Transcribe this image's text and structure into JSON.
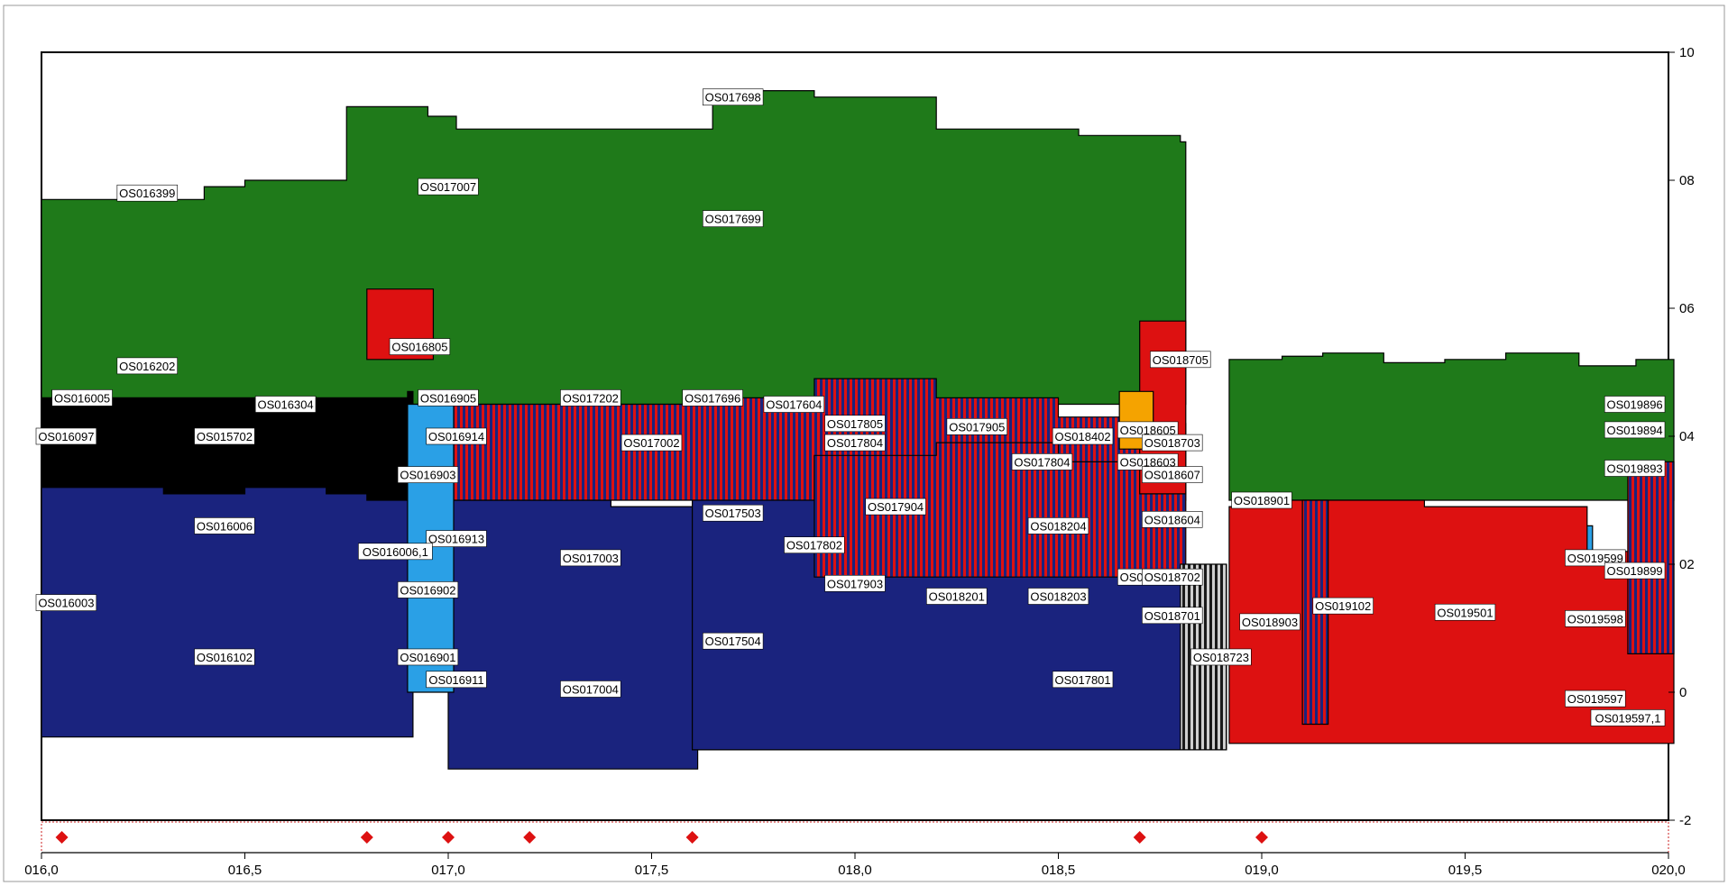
{
  "chart_data": {
    "type": "bar",
    "title": "",
    "xlabel": "",
    "ylabel": "",
    "x_ticks": [
      "016,0",
      "016,5",
      "017,0",
      "017,5",
      "018,0",
      "018,5",
      "019,0",
      "019,5",
      "020,0"
    ],
    "y_ticks": [
      "10",
      "08",
      "06",
      "04",
      "02",
      "0",
      "-2"
    ],
    "xlim": [
      16.0,
      20.0
    ],
    "ylim": [
      -2,
      10
    ],
    "grid": false,
    "legend": "none",
    "colors": {
      "green": "#1f7a1a",
      "navy": "#1a237e",
      "black": "#000000",
      "red": "#dd1111",
      "blue": "#2aa0e6",
      "orange": "#f5a300",
      "marker": "#dd1111"
    },
    "markers": [
      16.05,
      16.8,
      17.0,
      17.2,
      17.6,
      18.7,
      19.0
    ],
    "segments": [
      {
        "pattern": "green",
        "x": [
          16.0,
          16.2,
          16.4,
          16.5,
          16.75,
          16.95,
          17.02,
          17.3,
          17.6,
          17.65,
          17.9,
          18.2,
          18.55,
          18.8
        ],
        "y": [
          7.7,
          7.7,
          7.9,
          8.0,
          9.15,
          9.0,
          8.8,
          8.8,
          8.8,
          9.4,
          9.3,
          8.8,
          8.7,
          8.6
        ],
        "low": 4.5
      },
      {
        "pattern": "green",
        "x": [
          18.92,
          19.05,
          19.15,
          19.3,
          19.45,
          19.6,
          19.78,
          19.92,
          20.0
        ],
        "y": [
          5.2,
          5.25,
          5.3,
          5.15,
          5.2,
          5.3,
          5.1,
          5.2,
          5.2
        ],
        "low": 3.0
      },
      {
        "pattern": "black",
        "x": [
          16.0,
          16.45,
          16.9
        ],
        "y": [
          4.6,
          4.6,
          4.7
        ],
        "low": 3.0
      },
      {
        "pattern": "navy",
        "x": [
          16.0,
          16.1,
          16.3,
          16.5,
          16.7,
          16.8,
          16.9
        ],
        "y": [
          3.2,
          3.2,
          3.1,
          3.2,
          3.1,
          3.0,
          3.0
        ],
        "low": -0.7
      },
      {
        "pattern": "navy",
        "x": [
          17.0,
          17.2,
          17.4,
          17.6
        ],
        "y": [
          3.0,
          3.0,
          2.9,
          2.9
        ],
        "low": -1.2
      },
      {
        "pattern": "navy",
        "x": [
          17.6,
          17.9,
          18.2,
          18.5,
          18.8
        ],
        "y": [
          3.4,
          3.6,
          2.3,
          2.0,
          1.8
        ],
        "low": -0.9
      },
      {
        "pattern": "red-stripes",
        "x": [
          17.0,
          17.3,
          17.6,
          17.9,
          18.2,
          18.5,
          18.8
        ],
        "y": [
          4.5,
          4.5,
          4.6,
          4.9,
          4.6,
          4.3,
          4.2
        ],
        "low": 3.0
      },
      {
        "pattern": "red-stripes",
        "x": [
          17.9,
          18.2,
          18.5,
          18.8
        ],
        "y": [
          3.7,
          3.9,
          3.6,
          3.4
        ],
        "low": 1.8
      },
      {
        "pattern": "red",
        "x": [
          16.8,
          16.95
        ],
        "y": [
          6.3,
          6.3
        ],
        "low": 5.2
      },
      {
        "pattern": "red",
        "x": [
          18.7,
          18.8
        ],
        "y": [
          5.8,
          5.8
        ],
        "low": 3.1
      },
      {
        "pattern": "blue",
        "x": [
          16.9,
          17.0
        ],
        "y": [
          4.5,
          4.5
        ],
        "low": 0.0
      },
      {
        "pattern": "blue",
        "x": [
          19.6,
          19.8
        ],
        "y": [
          2.6,
          2.6
        ],
        "low": 1.9
      },
      {
        "pattern": "orange",
        "x": [
          18.65,
          18.72
        ],
        "y": [
          4.7,
          4.7
        ],
        "low": 3.8
      },
      {
        "pattern": "red",
        "x": [
          18.92,
          19.0,
          19.2,
          19.4,
          19.6,
          19.8,
          20.0
        ],
        "y": [
          2.9,
          3.0,
          3.0,
          2.9,
          2.9,
          2.2,
          2.0
        ],
        "low": -0.8
      },
      {
        "pattern": "navy-stripes",
        "x": [
          19.1,
          19.15
        ],
        "y": [
          3.0,
          3.0
        ],
        "low": -0.5
      },
      {
        "pattern": "navy-stripes",
        "x": [
          19.9,
          20.0
        ],
        "y": [
          3.6,
          3.6
        ],
        "low": 0.6
      },
      {
        "pattern": "gray-stripes",
        "x": [
          18.8,
          18.9
        ],
        "y": [
          2.0,
          2.0
        ],
        "low": -0.9
      }
    ],
    "labels": [
      {
        "text": "OS016399",
        "x": 16.26,
        "y": 7.8
      },
      {
        "text": "OS017007",
        "x": 17.0,
        "y": 7.9
      },
      {
        "text": "OS017698",
        "x": 17.7,
        "y": 9.3
      },
      {
        "text": "OS017699",
        "x": 17.7,
        "y": 7.4
      },
      {
        "text": "OS016805",
        "x": 16.93,
        "y": 5.4
      },
      {
        "text": "OS016202",
        "x": 16.26,
        "y": 5.1
      },
      {
        "text": "OS016005",
        "x": 16.1,
        "y": 4.6
      },
      {
        "text": "OS016304",
        "x": 16.6,
        "y": 4.5
      },
      {
        "text": "OS016905",
        "x": 17.0,
        "y": 4.6
      },
      {
        "text": "OS017202",
        "x": 17.35,
        "y": 4.6
      },
      {
        "text": "OS017696",
        "x": 17.65,
        "y": 4.6
      },
      {
        "text": "OS017604",
        "x": 17.85,
        "y": 4.5
      },
      {
        "text": "OS018705",
        "x": 18.8,
        "y": 5.2
      },
      {
        "text": "OS016097",
        "x": 16.05,
        "y": 4.0
      },
      {
        "text": "OS015702",
        "x": 16.45,
        "y": 4.0
      },
      {
        "text": "OS016914",
        "x": 17.02,
        "y": 4.0
      },
      {
        "text": "OS017002",
        "x": 17.5,
        "y": 3.9
      },
      {
        "text": "OS017805",
        "x": 18.0,
        "y": 4.2
      },
      {
        "text": "OS017804",
        "x": 18.0,
        "y": 3.9
      },
      {
        "text": "OS017905",
        "x": 18.3,
        "y": 4.15
      },
      {
        "text": "OS018402",
        "x": 18.56,
        "y": 4.0
      },
      {
        "text": "OS018605",
        "x": 18.72,
        "y": 4.1
      },
      {
        "text": "OS018703",
        "x": 18.78,
        "y": 3.9
      },
      {
        "text": "OS016903",
        "x": 16.95,
        "y": 3.4
      },
      {
        "text": "OS017804",
        "x": 18.46,
        "y": 3.6
      },
      {
        "text": "OS018603",
        "x": 18.72,
        "y": 3.6
      },
      {
        "text": "OS018607",
        "x": 18.78,
        "y": 3.4
      },
      {
        "text": "OS017904",
        "x": 18.1,
        "y": 2.9
      },
      {
        "text": "OS017503",
        "x": 17.7,
        "y": 2.8
      },
      {
        "text": "OS018901",
        "x": 19.0,
        "y": 3.0
      },
      {
        "text": "OS016006",
        "x": 16.45,
        "y": 2.6
      },
      {
        "text": "OS018604",
        "x": 18.78,
        "y": 2.7
      },
      {
        "text": "OS018204",
        "x": 18.5,
        "y": 2.6
      },
      {
        "text": "OS019896",
        "x": 19.92,
        "y": 4.5
      },
      {
        "text": "OS019894",
        "x": 19.92,
        "y": 4.1
      },
      {
        "text": "OS019893",
        "x": 20.0,
        "y": 3.5
      },
      {
        "text": "OS016913",
        "x": 17.02,
        "y": 2.4
      },
      {
        "text": "OS016006,1",
        "x": 16.87,
        "y": 2.2
      },
      {
        "text": "OS017003",
        "x": 17.35,
        "y": 2.1
      },
      {
        "text": "OS017802",
        "x": 17.9,
        "y": 2.3
      },
      {
        "text": "OS019599",
        "x": 19.82,
        "y": 2.1
      },
      {
        "text": "OS019899",
        "x": 20.0,
        "y": 1.9
      },
      {
        "text": "OS016003",
        "x": 16.05,
        "y": 1.4
      },
      {
        "text": "OS016902",
        "x": 16.95,
        "y": 1.6
      },
      {
        "text": "OS017903",
        "x": 18.0,
        "y": 1.7
      },
      {
        "text": "OS018201",
        "x": 18.25,
        "y": 1.5
      },
      {
        "text": "OS018203",
        "x": 18.5,
        "y": 1.5
      },
      {
        "text": "OS018601",
        "x": 18.72,
        "y": 1.8
      },
      {
        "text": "OS018702",
        "x": 18.78,
        "y": 1.8
      },
      {
        "text": "OS018701",
        "x": 18.78,
        "y": 1.2
      },
      {
        "text": "OS018903",
        "x": 19.02,
        "y": 1.1
      },
      {
        "text": "OS019102",
        "x": 19.2,
        "y": 1.35
      },
      {
        "text": "OS019501",
        "x": 19.5,
        "y": 1.25
      },
      {
        "text": "OS019598",
        "x": 19.82,
        "y": 1.15
      },
      {
        "text": "OS016102",
        "x": 16.45,
        "y": 0.55
      },
      {
        "text": "OS016901",
        "x": 16.95,
        "y": 0.55
      },
      {
        "text": "OS016911",
        "x": 17.02,
        "y": 0.2
      },
      {
        "text": "OS017504",
        "x": 17.7,
        "y": 0.8
      },
      {
        "text": "OS017004",
        "x": 17.35,
        "y": 0.05
      },
      {
        "text": "OS017801",
        "x": 18.56,
        "y": 0.2
      },
      {
        "text": "OS018723",
        "x": 18.9,
        "y": 0.55
      },
      {
        "text": "OS019597",
        "x": 19.82,
        "y": -0.1
      },
      {
        "text": "OS019597,1",
        "x": 20.0,
        "y": -0.4
      }
    ]
  }
}
